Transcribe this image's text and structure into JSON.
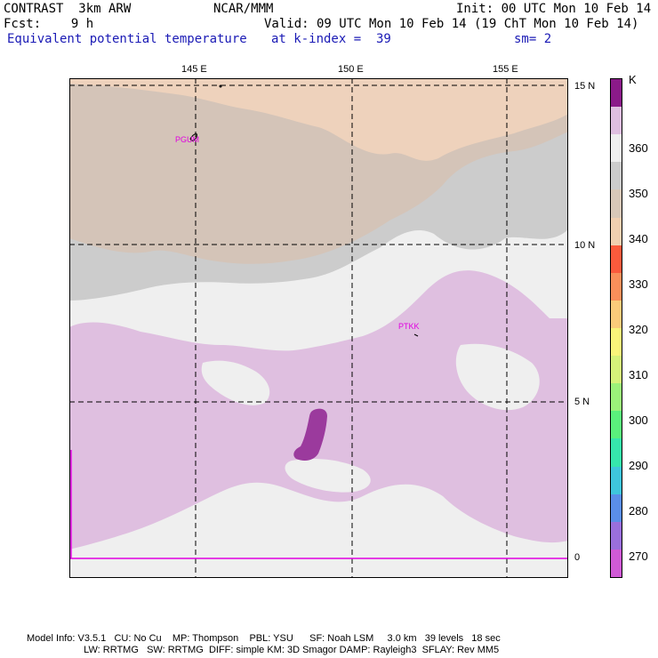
{
  "header": {
    "line1_left": "CONTRAST  3km ARW",
    "line1_mid": "NCAR/MMM",
    "line1_right": "Init: 00 UTC Mon 10 Feb 14",
    "line2_left": "Fcst:    9 h",
    "line2_right": "Valid: 09 UTC Mon 10 Feb 14 (19 ChT Mon 10 Feb 14)",
    "line3_left": "Equivalent potential temperature",
    "line3_mid": "at k-index =  39",
    "line3_right": "sm= 2"
  },
  "map": {
    "lon_labels": [
      "145 E",
      "150 E",
      "155 E"
    ],
    "lat_labels": [
      "15 N",
      "10 N",
      "5 N",
      "0"
    ],
    "stations": [
      "PGUM",
      "PTKK"
    ]
  },
  "colorbar": {
    "unit": "K",
    "labels": [
      "360",
      "350",
      "340",
      "330",
      "320",
      "310",
      "300",
      "290",
      "280",
      "270"
    ],
    "colors": [
      "#8b1a89",
      "#dfbfe0",
      "#efefef",
      "#cccccc",
      "#d8c8b8",
      "#f0cfb0",
      "#fb5a3c",
      "#f98f5a",
      "#fbcb7a",
      "#f9f47a",
      "#d6f27a",
      "#9bf27a",
      "#5af07c",
      "#36e6ac",
      "#3ec6dc",
      "#5a8ee8",
      "#9a6fdc",
      "#d05ad6"
    ]
  },
  "footer": {
    "line1": "Model Info: V3.5.1   CU: No Cu    MP: Thompson    PBL: YSU      SF: Noah LSM     3.0 km   39 levels   18 sec",
    "line2": "                     LW: RRTMG   SW: RRTMG  DIFF: simple KM: 3D Smagor DAMP: Rayleigh3  SFLAY: Rev MM5"
  }
}
